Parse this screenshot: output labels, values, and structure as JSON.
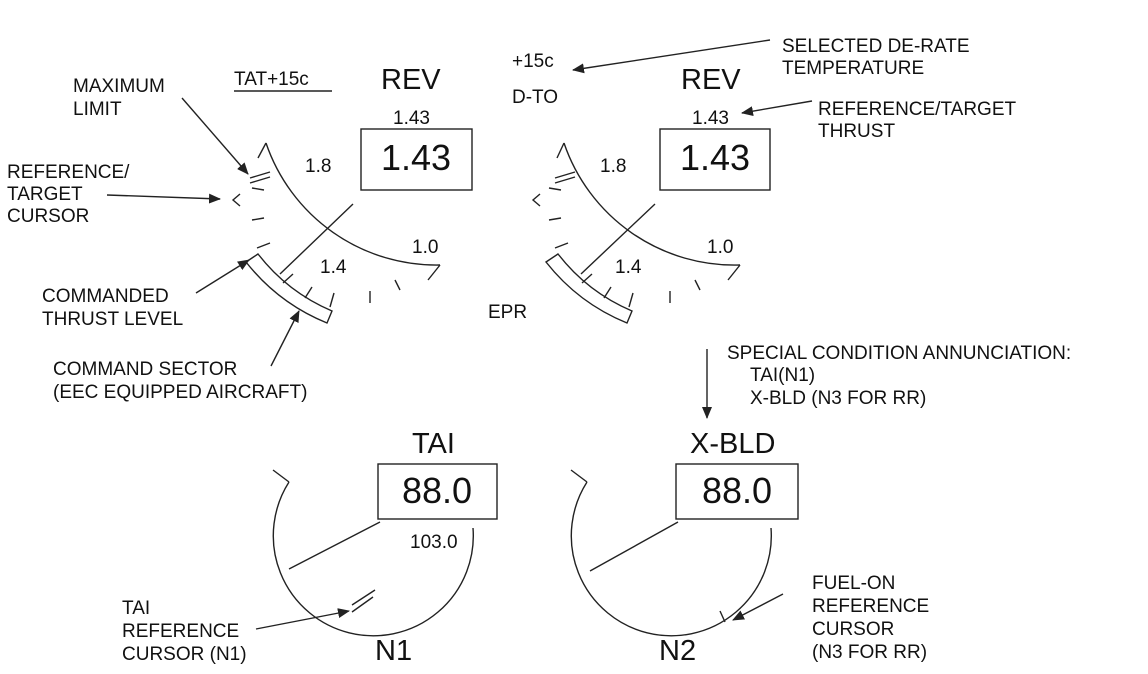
{
  "epr_left": {
    "title": "REV",
    "target": "1.43",
    "value": "1.43",
    "scale_labels": [
      "1.8",
      "1.4",
      "1.0"
    ],
    "tat_label": "TAT+15c"
  },
  "epr_right": {
    "title": "REV",
    "target": "1.43",
    "value": "1.43",
    "scale_labels": [
      "1.8",
      "1.4",
      "1.0"
    ],
    "derate_temp": "+15c",
    "derate_mode": "D-TO"
  },
  "epr_label": "EPR",
  "n1": {
    "title": "TAI",
    "value": "88.0",
    "redline": "103.0",
    "label": "N1"
  },
  "n2": {
    "title": "X-BLD",
    "value": "88.0",
    "label": "N2"
  },
  "annotations": {
    "maximum_limit": [
      "MAXIMUM",
      "LIMIT"
    ],
    "ref_target_cursor": [
      "REFERENCE/",
      "TARGET",
      "CURSOR"
    ],
    "commanded_thrust": [
      "COMMANDED",
      "THRUST LEVEL"
    ],
    "command_sector": [
      "COMMAND SECTOR",
      "(EEC EQUIPPED AIRCRAFT)"
    ],
    "selected_derate": [
      "SELECTED DE-RATE",
      "TEMPERATURE"
    ],
    "ref_target_thrust": [
      "REFERENCE/TARGET",
      "THRUST"
    ],
    "special_condition": [
      "SPECIAL CONDITION ANNUNCIATION:",
      "TAI(N1)",
      "X-BLD (N3 FOR RR)"
    ],
    "tai_ref_cursor": [
      "TAI",
      "REFERENCE",
      "CURSOR (N1)"
    ],
    "fuel_on_cursor": [
      "FUEL-ON",
      "REFERENCE",
      "CURSOR",
      "(N3 FOR RR)"
    ]
  }
}
